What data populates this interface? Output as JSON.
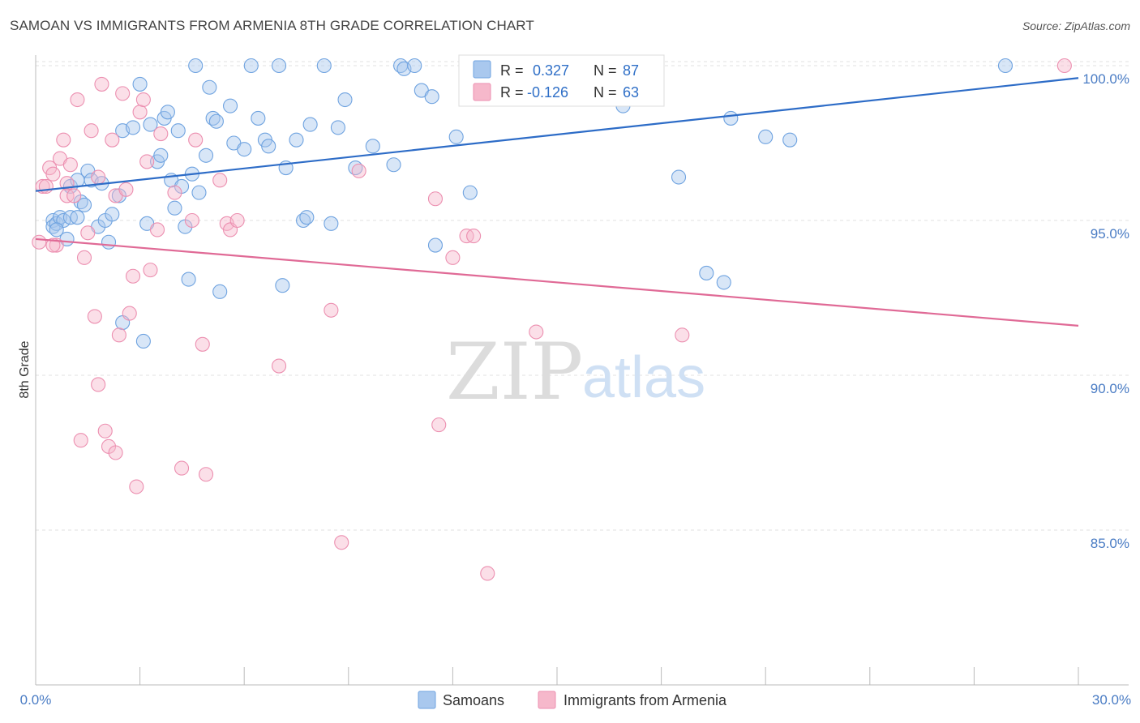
{
  "title": "SAMOAN VS IMMIGRANTS FROM ARMENIA 8TH GRADE CORRELATION CHART",
  "source": "Source: ZipAtlas.com",
  "watermark": {
    "zip": "ZIP",
    "atlas": "atlas"
  },
  "legend_box": [
    {
      "r_label": "R =",
      "r_value": "0.327",
      "n_label": "N =",
      "n_value": "87",
      "color": "#a9c8ee"
    },
    {
      "r_label": "R =",
      "r_value": "-0.126",
      "n_label": "N =",
      "n_value": "63",
      "color": "#f6b8cb"
    }
  ],
  "bottom_legend": [
    {
      "label": "Samoans",
      "color": "#a9c8ee"
    },
    {
      "label": "Immigrants from Armenia",
      "color": "#f6b8cb"
    }
  ],
  "chart_data": {
    "type": "scatter",
    "ylabel": "8th Grade",
    "xlim": [
      0,
      30
    ],
    "ylim": [
      80.5,
      100.7
    ],
    "x_tick_labels": [
      "0.0%",
      "30.0%"
    ],
    "y_ticks": [
      {
        "value": 100,
        "label": "100.0%"
      },
      {
        "value": 95,
        "label": "95.0%"
      },
      {
        "value": 90,
        "label": "90.0%"
      },
      {
        "value": 85,
        "label": "85.0%"
      }
    ],
    "grid": true,
    "series": [
      {
        "name": "Samoans",
        "color": "#6fa3e0",
        "fill": "#a9c8ee",
        "line_color": "#2d6cc7",
        "trend": {
          "x0": 0,
          "y0": 95.95,
          "x1": 30,
          "y1": 99.6
        },
        "points": [
          [
            0.5,
            95.0
          ],
          [
            0.5,
            94.8
          ],
          [
            0.6,
            94.9
          ],
          [
            0.7,
            95.1
          ],
          [
            0.8,
            95.0
          ],
          [
            1.0,
            95.1
          ],
          [
            0.9,
            94.4
          ],
          [
            1.0,
            96.1
          ],
          [
            1.2,
            96.3
          ],
          [
            1.3,
            95.6
          ],
          [
            1.4,
            95.5
          ],
          [
            1.5,
            96.6
          ],
          [
            1.6,
            96.3
          ],
          [
            1.8,
            94.8
          ],
          [
            1.9,
            96.2
          ],
          [
            2.0,
            95.0
          ],
          [
            2.2,
            95.2
          ],
          [
            2.1,
            94.3
          ],
          [
            2.4,
            95.8
          ],
          [
            2.5,
            97.9
          ],
          [
            2.8,
            98.0
          ],
          [
            3.0,
            99.4
          ],
          [
            3.2,
            94.9
          ],
          [
            3.3,
            98.1
          ],
          [
            3.5,
            96.9
          ],
          [
            3.6,
            97.1
          ],
          [
            3.7,
            98.3
          ],
          [
            3.8,
            98.5
          ],
          [
            3.9,
            96.3
          ],
          [
            4.0,
            95.4
          ],
          [
            4.1,
            97.9
          ],
          [
            4.2,
            96.1
          ],
          [
            4.3,
            94.8
          ],
          [
            4.4,
            93.1
          ],
          [
            4.5,
            96.5
          ],
          [
            4.6,
            100.0
          ],
          [
            4.7,
            95.9
          ],
          [
            4.9,
            97.1
          ],
          [
            5.0,
            99.3
          ],
          [
            5.1,
            98.3
          ],
          [
            5.2,
            98.2
          ],
          [
            5.3,
            92.7
          ],
          [
            5.6,
            98.7
          ],
          [
            5.7,
            97.5
          ],
          [
            6.0,
            97.3
          ],
          [
            6.2,
            100.0
          ],
          [
            6.4,
            98.3
          ],
          [
            6.6,
            97.6
          ],
          [
            6.7,
            97.4
          ],
          [
            7.0,
            100.0
          ],
          [
            7.1,
            92.9
          ],
          [
            7.2,
            96.7
          ],
          [
            7.5,
            97.6
          ],
          [
            7.7,
            95.0
          ],
          [
            7.8,
            95.1
          ],
          [
            7.9,
            98.1
          ],
          [
            8.3,
            100.0
          ],
          [
            8.5,
            94.9
          ],
          [
            8.7,
            98.0
          ],
          [
            8.9,
            98.9
          ],
          [
            9.2,
            96.7
          ],
          [
            9.7,
            97.4
          ],
          [
            10.3,
            96.8
          ],
          [
            10.5,
            100.0
          ],
          [
            10.6,
            99.9
          ],
          [
            10.9,
            100.0
          ],
          [
            11.1,
            99.2
          ],
          [
            11.4,
            99.0
          ],
          [
            11.5,
            94.2
          ],
          [
            12.1,
            97.7
          ],
          [
            12.5,
            95.9
          ],
          [
            13.0,
            99.0
          ],
          [
            13.9,
            99.9
          ],
          [
            14.7,
            100.0
          ],
          [
            16.9,
            98.7
          ],
          [
            18.5,
            96.4
          ],
          [
            19.3,
            93.3
          ],
          [
            19.8,
            93.0
          ],
          [
            20.0,
            98.3
          ],
          [
            21.0,
            97.7
          ],
          [
            21.7,
            97.6
          ],
          [
            27.9,
            100.0
          ],
          [
            2.5,
            91.7
          ],
          [
            3.1,
            91.1
          ],
          [
            1.2,
            95.1
          ],
          [
            13.9,
            99.9
          ],
          [
            0.6,
            94.7
          ]
        ]
      },
      {
        "name": "Immigrants from Armenia",
        "color": "#ec8fb0",
        "fill": "#f6b8cb",
        "line_color": "#e06a96",
        "trend": {
          "x0": 0,
          "y0": 94.4,
          "x1": 30,
          "y1": 91.6
        },
        "points": [
          [
            0.1,
            94.3
          ],
          [
            0.2,
            96.1
          ],
          [
            0.3,
            96.1
          ],
          [
            0.4,
            96.7
          ],
          [
            0.5,
            96.5
          ],
          [
            0.6,
            94.2
          ],
          [
            0.7,
            97.0
          ],
          [
            0.8,
            97.6
          ],
          [
            0.9,
            96.2
          ],
          [
            0.9,
            95.8
          ],
          [
            1.0,
            96.8
          ],
          [
            1.1,
            95.8
          ],
          [
            1.2,
            98.9
          ],
          [
            1.4,
            93.8
          ],
          [
            1.5,
            94.6
          ],
          [
            1.6,
            97.9
          ],
          [
            1.8,
            96.4
          ],
          [
            1.7,
            91.9
          ],
          [
            1.9,
            99.4
          ],
          [
            2.0,
            88.2
          ],
          [
            2.2,
            97.6
          ],
          [
            2.3,
            95.8
          ],
          [
            2.4,
            91.3
          ],
          [
            2.5,
            99.1
          ],
          [
            2.6,
            96.0
          ],
          [
            2.7,
            92.0
          ],
          [
            2.8,
            93.2
          ],
          [
            2.9,
            86.4
          ],
          [
            3.0,
            98.5
          ],
          [
            3.1,
            98.9
          ],
          [
            3.2,
            96.9
          ],
          [
            3.3,
            93.4
          ],
          [
            3.5,
            94.7
          ],
          [
            3.6,
            97.8
          ],
          [
            4.0,
            95.9
          ],
          [
            4.2,
            87.0
          ],
          [
            4.5,
            95.0
          ],
          [
            4.6,
            97.6
          ],
          [
            4.8,
            91.0
          ],
          [
            4.9,
            86.8
          ],
          [
            5.3,
            96.3
          ],
          [
            5.5,
            94.9
          ],
          [
            5.6,
            94.7
          ],
          [
            5.8,
            95.0
          ],
          [
            7.0,
            90.3
          ],
          [
            8.5,
            92.1
          ],
          [
            8.8,
            84.6
          ],
          [
            9.3,
            96.6
          ],
          [
            11.5,
            95.7
          ],
          [
            11.6,
            88.4
          ],
          [
            12.0,
            93.8
          ],
          [
            12.4,
            94.5
          ],
          [
            12.6,
            94.5
          ],
          [
            13.0,
            83.6
          ],
          [
            14.4,
            91.4
          ],
          [
            14.8,
            100.0
          ],
          [
            18.6,
            91.3
          ],
          [
            29.6,
            100.0
          ],
          [
            1.3,
            87.9
          ],
          [
            2.1,
            87.7
          ],
          [
            2.3,
            87.5
          ],
          [
            1.8,
            89.7
          ],
          [
            0.5,
            94.2
          ]
        ]
      }
    ]
  }
}
